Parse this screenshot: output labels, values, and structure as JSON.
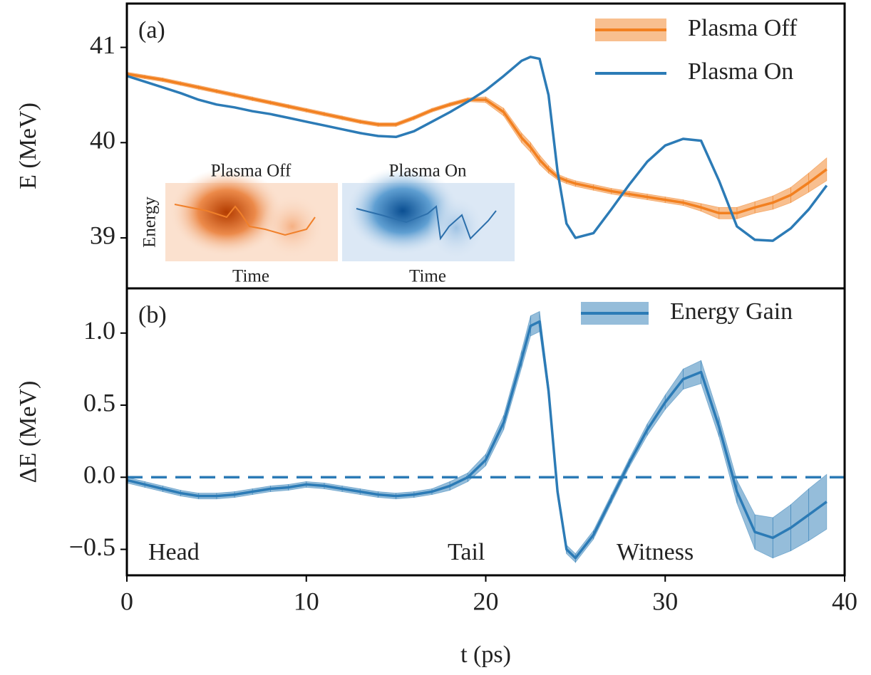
{
  "chart_data": [
    {
      "type": "line",
      "label": "(a)",
      "ylabel": "E (MeV)",
      "legend": "upper right",
      "x": [
        0,
        1,
        2,
        3,
        4,
        5,
        6,
        7,
        8,
        9,
        10,
        11,
        12,
        13,
        14,
        15,
        16,
        17,
        18,
        19,
        20,
        21,
        22,
        22.5,
        23,
        23.5,
        24,
        24.5,
        25,
        26,
        27,
        28,
        29,
        30,
        31,
        32,
        33,
        34,
        35,
        36,
        37,
        38,
        39
      ],
      "xlim": [
        0,
        40
      ],
      "ylim": [
        38.47,
        41.46
      ],
      "yticks": [
        39,
        40,
        41
      ],
      "series": [
        {
          "name": "Plasma Off",
          "color": "#f28020",
          "values": [
            40.72,
            40.69,
            40.66,
            40.62,
            40.58,
            40.54,
            40.5,
            40.46,
            40.42,
            40.38,
            40.34,
            40.3,
            40.26,
            40.22,
            40.19,
            40.19,
            40.26,
            40.34,
            40.4,
            40.45,
            40.45,
            40.32,
            40.05,
            39.95,
            39.82,
            39.72,
            39.64,
            39.6,
            39.57,
            39.53,
            39.49,
            39.46,
            39.43,
            39.4,
            39.37,
            39.32,
            39.26,
            39.26,
            39.32,
            39.37,
            39.45,
            39.58,
            39.72
          ],
          "errors": [
            0.02,
            0.02,
            0.02,
            0.02,
            0.02,
            0.02,
            0.02,
            0.02,
            0.02,
            0.02,
            0.02,
            0.02,
            0.02,
            0.02,
            0.02,
            0.02,
            0.02,
            0.02,
            0.02,
            0.02,
            0.03,
            0.04,
            0.05,
            0.05,
            0.05,
            0.04,
            0.03,
            0.03,
            0.03,
            0.03,
            0.03,
            0.03,
            0.03,
            0.03,
            0.03,
            0.04,
            0.06,
            0.06,
            0.06,
            0.07,
            0.08,
            0.1,
            0.12
          ]
        },
        {
          "name": "Plasma On",
          "color": "#2c7bb6",
          "values": [
            40.7,
            40.64,
            40.58,
            40.52,
            40.45,
            40.4,
            40.37,
            40.33,
            40.3,
            40.26,
            40.22,
            40.18,
            40.14,
            40.1,
            40.07,
            40.06,
            40.12,
            40.22,
            40.32,
            40.43,
            40.55,
            40.7,
            40.86,
            40.9,
            40.88,
            40.5,
            39.7,
            39.15,
            39.0,
            39.05,
            39.3,
            39.56,
            39.8,
            39.97,
            40.04,
            40.02,
            39.6,
            39.12,
            38.98,
            38.97,
            39.1,
            39.3,
            39.55
          ]
        }
      ]
    },
    {
      "type": "line",
      "label": "(b)",
      "xlabel": "t (ps)",
      "ylabel": "ΔE (MeV)",
      "legend": "upper right",
      "x": [
        0,
        1,
        2,
        3,
        4,
        5,
        6,
        7,
        8,
        9,
        10,
        11,
        12,
        13,
        14,
        15,
        16,
        17,
        18,
        19,
        20,
        21,
        22,
        22.5,
        23,
        23.5,
        24,
        24.5,
        25,
        26,
        27,
        28,
        29,
        30,
        31,
        32,
        33,
        34,
        35,
        36,
        37,
        38,
        39
      ],
      "xlim": [
        0,
        40
      ],
      "xticks": [
        0,
        10,
        20,
        30,
        40
      ],
      "ylim": [
        -0.68,
        1.31
      ],
      "yticks": [
        {
          "value": -0.5,
          "label": "−0.5"
        },
        {
          "value": 0,
          "label": "0.0"
        },
        {
          "value": 0.5,
          "label": "0.5"
        },
        {
          "value": 1,
          "label": "1.0"
        }
      ],
      "hline": 0,
      "annotations": [
        "Head",
        "Tail",
        "Witness"
      ],
      "series": [
        {
          "name": "Energy Gain",
          "color": "#2c7bb6",
          "values": [
            -0.02,
            -0.05,
            -0.08,
            -0.11,
            -0.13,
            -0.13,
            -0.12,
            -0.1,
            -0.08,
            -0.07,
            -0.05,
            -0.06,
            -0.08,
            -0.1,
            -0.12,
            -0.13,
            -0.12,
            -0.1,
            -0.06,
            0.0,
            0.12,
            0.38,
            0.82,
            1.05,
            1.08,
            0.6,
            -0.1,
            -0.5,
            -0.56,
            -0.4,
            -0.15,
            0.1,
            0.33,
            0.52,
            0.68,
            0.73,
            0.35,
            -0.1,
            -0.38,
            -0.42,
            -0.35,
            -0.26,
            -0.17
          ],
          "errors": [
            0.02,
            0.02,
            0.02,
            0.02,
            0.02,
            0.02,
            0.02,
            0.02,
            0.02,
            0.02,
            0.02,
            0.02,
            0.02,
            0.02,
            0.02,
            0.02,
            0.02,
            0.02,
            0.03,
            0.03,
            0.04,
            0.05,
            0.06,
            0.07,
            0.07,
            0.05,
            0.04,
            0.03,
            0.03,
            0.03,
            0.03,
            0.03,
            0.04,
            0.05,
            0.07,
            0.08,
            0.07,
            0.08,
            0.12,
            0.14,
            0.16,
            0.18,
            0.19
          ]
        }
      ]
    }
  ],
  "insets": [
    {
      "title": "Plasma Off",
      "xlabel": "Time",
      "ylabel": "Energy"
    },
    {
      "title": "Plasma On",
      "xlabel": "Time"
    }
  ]
}
